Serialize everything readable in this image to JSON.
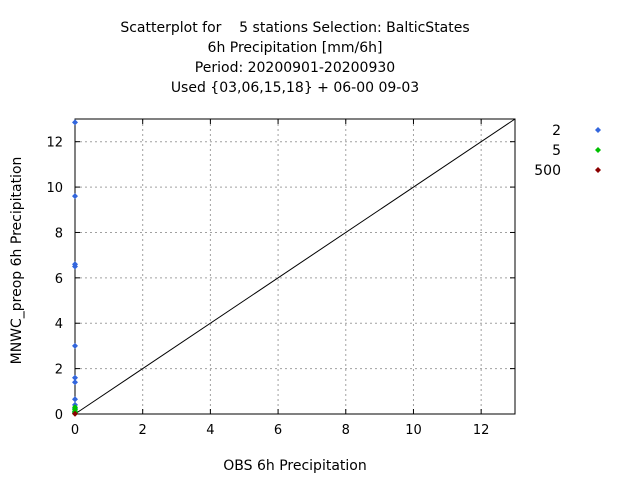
{
  "chart_data": {
    "type": "scatter",
    "title_lines": [
      "Scatterplot for    5 stations Selection: BalticStates",
      "6h Precipitation [mm/6h]",
      "Period: 20200901-20200930",
      "Used {03,06,15,18} + 06-00 09-03"
    ],
    "xlabel": "OBS 6h Precipitation",
    "ylabel": "MNWC_preop 6h Precipitation",
    "xlim": [
      0,
      13
    ],
    "ylim": [
      0,
      13
    ],
    "xticks": [
      0,
      2,
      4,
      6,
      8,
      10,
      12
    ],
    "yticks": [
      0,
      2,
      4,
      6,
      8,
      10,
      12
    ],
    "grid": true,
    "legend_position": "right",
    "diagonal_line": true,
    "series": [
      {
        "name": "2",
        "color": "#3366dd",
        "points": [
          [
            0,
            12.85
          ],
          [
            0,
            9.6
          ],
          [
            0,
            6.6
          ],
          [
            0,
            6.5
          ],
          [
            0,
            3.0
          ],
          [
            0,
            1.6
          ],
          [
            0,
            1.4
          ],
          [
            0,
            0.65
          ],
          [
            0,
            0.4
          ],
          [
            0,
            0.25
          ],
          [
            0,
            0.1
          ],
          [
            0,
            0.05
          ]
        ]
      },
      {
        "name": "5",
        "color": "#00c000",
        "points": [
          [
            0,
            0.3
          ],
          [
            0,
            0.2
          ],
          [
            0,
            0.12
          ],
          [
            0,
            0.06
          ],
          [
            0,
            0.02
          ]
        ]
      },
      {
        "name": "500",
        "color": "#8b0000",
        "points": [
          [
            0,
            0.01
          ]
        ]
      }
    ]
  }
}
